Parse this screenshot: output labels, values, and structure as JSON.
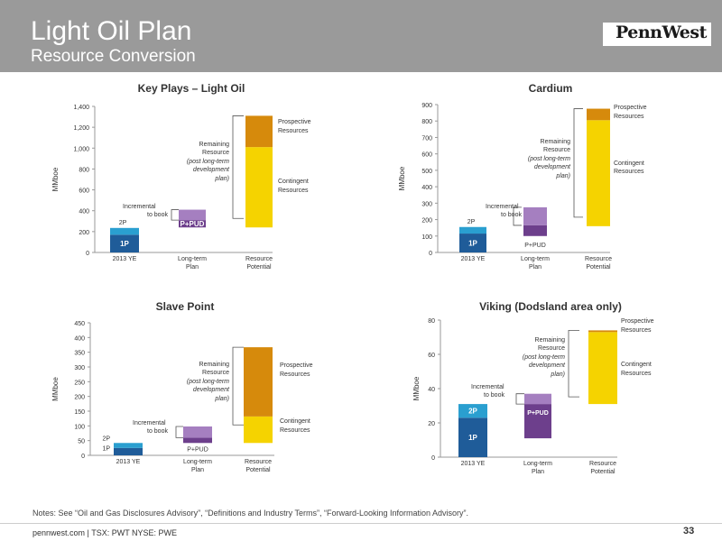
{
  "page": {
    "title": "Light Oil Plan",
    "subtitle": "Resource Conversion",
    "logo": "PennWest",
    "notes": "Notes: See “Oil and Gas Disclosures Advisory”, “Definitions and Industry Terms”, “Forward-Looking Information Advisory”.",
    "footer": "pennwest.com | TSX: PWT  NYSE: PWE",
    "page_number": "33"
  },
  "colors": {
    "header": "#9a9a9a",
    "p1": "#1f5c99",
    "p2": "#2a9fd0",
    "ppud_dark": "#6d3f8c",
    "ppud_light": "#a57fc0",
    "contingent": "#f5d300",
    "prospective": "#d68a0c"
  },
  "chart_data": [
    {
      "type": "bar",
      "title": "Key Plays – Light Oil",
      "ylabel": "MMboe",
      "ylim": [
        0,
        1400
      ],
      "yticks": [
        "0",
        "200",
        "400",
        "600",
        "800",
        "1,000",
        "1,200",
        "1,400"
      ],
      "categories": [
        "2013 YE",
        "Long-term Plan",
        "Resource Potential"
      ],
      "bars": {
        "ye2013": {
          "p1": 170,
          "p2_top": 235
        },
        "plan": {
          "base": 240,
          "dark_top": 310,
          "top": 410
        },
        "resource": {
          "base": 240,
          "contingent_top": 1010,
          "top": 1310
        }
      },
      "labels": {
        "p2": "2P",
        "p1": "1P",
        "ppud": "P+PUD",
        "incremental": [
          "Incremental",
          "to book"
        ],
        "remaining": [
          "Remaining",
          "Resource",
          "(post long-term",
          "development",
          "plan)"
        ],
        "prospective": [
          "Prospective",
          "Resources"
        ],
        "contingent": [
          "Contingent",
          "Resources"
        ]
      }
    },
    {
      "type": "bar",
      "title": "Cardium",
      "ylabel": "MMboe",
      "ylim": [
        0,
        900
      ],
      "yticks": [
        "0",
        "100",
        "200",
        "300",
        "400",
        "500",
        "600",
        "700",
        "800",
        "900"
      ],
      "categories": [
        "2013 YE",
        "Long-term Plan",
        "Resource Potential"
      ],
      "bars": {
        "ye2013": {
          "p1": 115,
          "p2_top": 155
        },
        "plan": {
          "base": 100,
          "dark_top": 165,
          "top": 275
        },
        "resource": {
          "base": 160,
          "contingent_top": 805,
          "top": 875
        }
      },
      "labels": {
        "p2": "2P",
        "p1": "1P",
        "ppud": "P+PUD",
        "incremental": [
          "Incremental",
          "to book"
        ],
        "remaining": [
          "Remaining",
          "Resource",
          "(post long-term",
          "development",
          "plan)"
        ],
        "prospective": [
          "Prospective",
          "Resources"
        ],
        "contingent": [
          "Contingent",
          "Resources"
        ]
      }
    },
    {
      "type": "bar",
      "title": "Slave Point",
      "ylabel": "MMboe",
      "ylim": [
        0,
        450
      ],
      "yticks": [
        "0",
        "50",
        "100",
        "150",
        "200",
        "250",
        "300",
        "350",
        "400",
        "450"
      ],
      "categories": [
        "2013 YE",
        "Long-term Plan",
        "Resource Potential"
      ],
      "bars": {
        "ye2013": {
          "p1": 25,
          "p2_top": 42
        },
        "plan": {
          "base": 42,
          "dark_top": 60,
          "top": 98
        },
        "resource": {
          "base": 42,
          "contingent_top": 132,
          "top": 367
        }
      },
      "labels": {
        "p2": "2P",
        "p1": "1P",
        "ppud": "P+PUD",
        "incremental": [
          "Incremental",
          "to book"
        ],
        "remaining": [
          "Remaining",
          "Resource",
          "(post long-term",
          "development",
          "plan)"
        ],
        "prospective": [
          "Prospective",
          "Resources"
        ],
        "contingent": [
          "Contingent",
          "Resources"
        ]
      }
    },
    {
      "type": "bar",
      "title": "Viking (Dodsland area only)",
      "ylabel": "MMboe",
      "ylim": [
        0,
        80
      ],
      "yticks": [
        "0",
        "20",
        "40",
        "60",
        "80"
      ],
      "categories": [
        "2013 YE",
        "Long-term Plan",
        "Resource Potential"
      ],
      "bars": {
        "ye2013": {
          "p1": 23,
          "p2_top": 31
        },
        "plan": {
          "base": 11,
          "dark_top": 31,
          "top": 37
        },
        "resource": {
          "base": 31,
          "contingent_top": 73,
          "top": 74
        }
      },
      "labels": {
        "p2": "2P",
        "p1": "1P",
        "ppud": "P+PUD",
        "incremental": [
          "Incremental",
          "to book"
        ],
        "remaining": [
          "Remaining",
          "Resource",
          "(post long-term",
          "development",
          "plan)"
        ],
        "prospective": [
          "Prospective",
          "Resources"
        ],
        "contingent": [
          "Contingent",
          "Resources"
        ]
      }
    }
  ]
}
